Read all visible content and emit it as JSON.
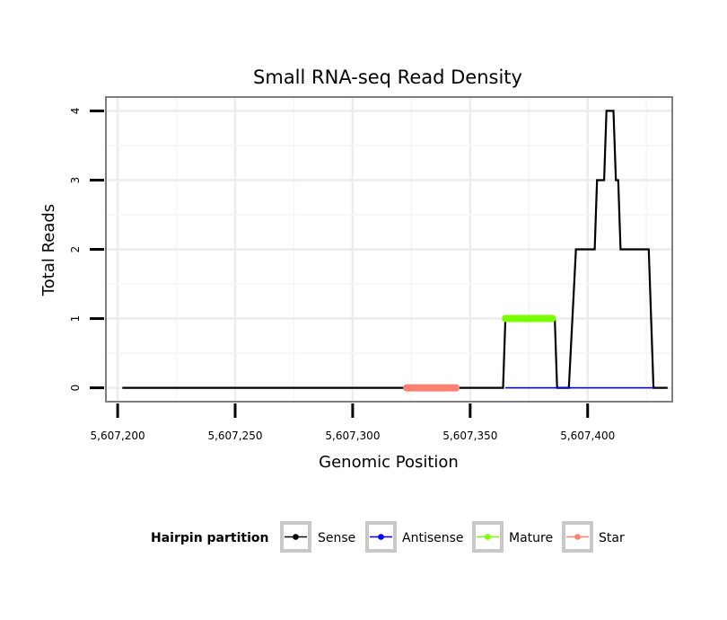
{
  "chart_data": {
    "type": "line",
    "title": "Small RNA-seq Read Density",
    "xlabel": "Genomic Position",
    "ylabel": "Total Reads",
    "xlim": [
      5607195,
      5607436
    ],
    "ylim": [
      -0.2,
      4.2
    ],
    "x_ticks": [
      5607200,
      5607250,
      5607300,
      5607350,
      5607400
    ],
    "x_tick_labels": [
      "5,607,200",
      "5,607,250",
      "5,607,300",
      "5,607,350",
      "5,607,400"
    ],
    "y_ticks": [
      0,
      1,
      2,
      3,
      4
    ],
    "y_tick_labels": [
      "0",
      "1",
      "2",
      "3",
      "4"
    ],
    "grid": true,
    "legend": {
      "title": "Hairpin partition",
      "position": "bottom",
      "items": [
        "Sense",
        "Antisense",
        "Mature",
        "Star"
      ]
    },
    "series": [
      {
        "name": "Sense",
        "color": "#000000",
        "x": [
          5607202,
          5607364,
          5607365,
          5607386,
          5607387,
          5607392,
          5607395,
          5607403,
          5607404,
          5607407,
          5607408,
          5607411,
          5607412,
          5607413,
          5607414,
          5607426,
          5607428,
          5607434
        ],
        "y": [
          0,
          0,
          1,
          1,
          0,
          0,
          2,
          2,
          3,
          3,
          4,
          4,
          3,
          3,
          2,
          2,
          0,
          0
        ]
      },
      {
        "name": "Antisense",
        "color": "#0000ff",
        "x": [
          5607365,
          5607428
        ],
        "y": [
          0,
          0
        ]
      },
      {
        "name": "Mature",
        "color": "#7cfc00",
        "x": [
          5607365,
          5607385
        ],
        "y": [
          1,
          1
        ]
      },
      {
        "name": "Star",
        "color": "#fa8072",
        "x": [
          5607323,
          5607344
        ],
        "y": [
          0,
          0
        ]
      }
    ]
  }
}
